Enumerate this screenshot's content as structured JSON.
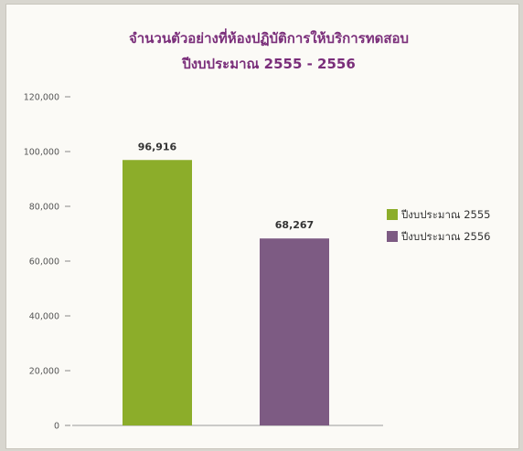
{
  "chart_data": {
    "type": "bar",
    "title": "จำนวนตัวอย่างที่ห้องปฏิบัติการให้บริการทดสอบ",
    "subtitle": "ปีงบประมาณ 2555 - 2556",
    "categories": [
      "ปีงบประมาณ 2555",
      "ปีงบประมาณ 2556"
    ],
    "values": [
      96916,
      68267
    ],
    "value_labels": [
      "96,916",
      "68,267"
    ],
    "colors": [
      "#8cad2a",
      "#7d5b83"
    ],
    "ylim": [
      0,
      120000
    ],
    "yticks": [
      0,
      20000,
      40000,
      60000,
      80000,
      100000,
      120000
    ],
    "ytick_labels": [
      "0",
      "20,000",
      "40,000",
      "60,000",
      "80,000",
      "100,000",
      "120,000"
    ],
    "grid": false,
    "legend": "right",
    "xlabel": "",
    "ylabel": ""
  }
}
